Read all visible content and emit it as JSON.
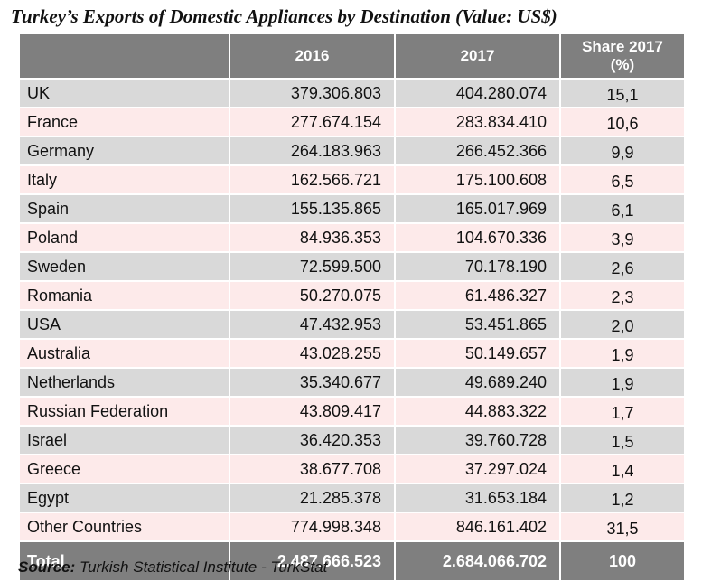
{
  "title": "Turkey’s Exports of Domestic Appliances by Destination (Value: US$)",
  "headers": {
    "col1": "2016",
    "col2": "2017",
    "col3_line1": "Share 2017",
    "col3_line2": "(%)"
  },
  "rows": [
    {
      "country": "UK",
      "v2016": "379.306.803",
      "v2017": "404.280.074",
      "share": "15,1"
    },
    {
      "country": "France",
      "v2016": "277.674.154",
      "v2017": "283.834.410",
      "share": "10,6"
    },
    {
      "country": "Germany",
      "v2016": "264.183.963",
      "v2017": "266.452.366",
      "share": "9,9"
    },
    {
      "country": "Italy",
      "v2016": "162.566.721",
      "v2017": "175.100.608",
      "share": "6,5"
    },
    {
      "country": "Spain",
      "v2016": "155.135.865",
      "v2017": "165.017.969",
      "share": "6,1"
    },
    {
      "country": "Poland",
      "v2016": "84.936.353",
      "v2017": "104.670.336",
      "share": "3,9"
    },
    {
      "country": "Sweden",
      "v2016": "72.599.500",
      "v2017": "70.178.190",
      "share": "2,6"
    },
    {
      "country": "Romania",
      "v2016": "50.270.075",
      "v2017": "61.486.327",
      "share": "2,3"
    },
    {
      "country": "USA",
      "v2016": "47.432.953",
      "v2017": "53.451.865",
      "share": "2,0"
    },
    {
      "country": "Australia",
      "v2016": "43.028.255",
      "v2017": "50.149.657",
      "share": "1,9"
    },
    {
      "country": "Netherlands",
      "v2016": "35.340.677",
      "v2017": "49.689.240",
      "share": "1,9"
    },
    {
      "country": "Russian Federation",
      "v2016": "43.809.417",
      "v2017": "44.883.322",
      "share": "1,7"
    },
    {
      "country": "Israel",
      "v2016": "36.420.353",
      "v2017": "39.760.728",
      "share": "1,5"
    },
    {
      "country": "Greece",
      "v2016": "38.677.708",
      "v2017": "37.297.024",
      "share": "1,4"
    },
    {
      "country": "Egypt",
      "v2016": "21.285.378",
      "v2017": "31.653.184",
      "share": "1,2"
    },
    {
      "country": "Other Countries",
      "v2016": "774.998.348",
      "v2017": "846.161.402",
      "share": "31,5"
    }
  ],
  "total": {
    "label": "Total",
    "v2016": "2.487.666.523",
    "v2017": "2.684.066.702",
    "share": "100"
  },
  "source": {
    "label": "Source:",
    "text": "Turkish Statistical Institute - TurkStat"
  },
  "colors": {
    "header_bg": "#7f7f7f",
    "row_gray": "#d9d9d9",
    "row_pink": "#fdeaea"
  }
}
